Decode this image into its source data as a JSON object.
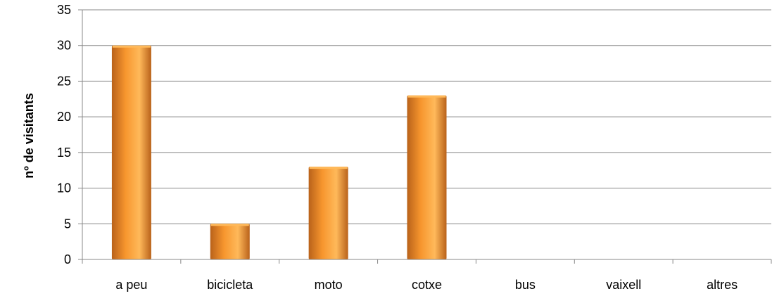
{
  "chart_data": {
    "type": "bar",
    "categories": [
      "a peu",
      "bicicleta",
      "moto",
      "cotxe",
      "bus",
      "vaixell",
      "altres"
    ],
    "values": [
      30,
      5,
      13,
      23,
      0,
      0,
      0
    ],
    "title": "",
    "xlabel": "",
    "ylabel": "nº de visitants",
    "ylim": [
      0,
      35
    ],
    "yticks": [
      0,
      5,
      10,
      15,
      20,
      25,
      30,
      35
    ],
    "grid": true,
    "legend": "none",
    "colors": {
      "bar_light": "#ffb95a",
      "bar_mid": "#f7962e",
      "bar_dark": "#b9621a",
      "grid": "#888888",
      "axis": "#888888"
    }
  }
}
